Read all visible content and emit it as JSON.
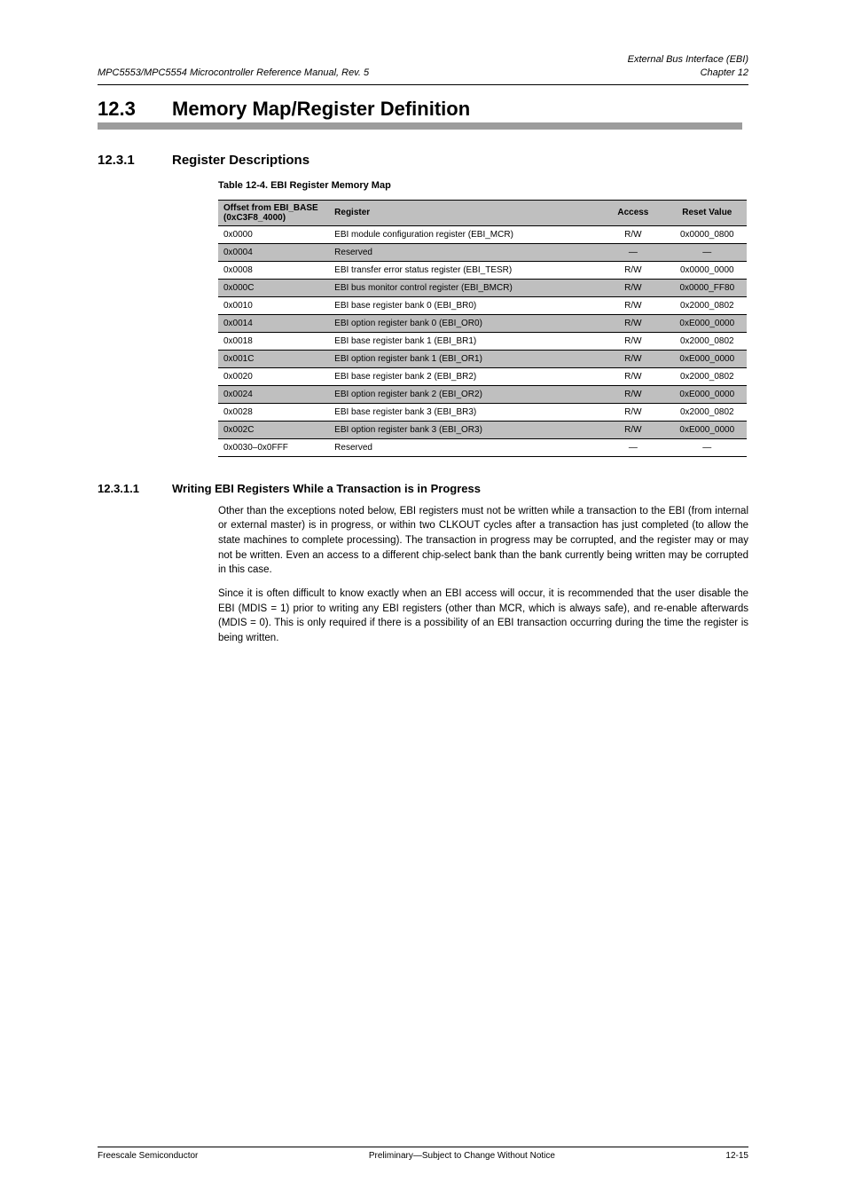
{
  "header": {
    "left_line1": "MPC5553/MPC5554 Microcontroller Reference Manual, Rev. 5",
    "right_line1": "External Bus Interface (EBI)",
    "right_line2": "Chapter 12"
  },
  "section": {
    "number": "12.3",
    "title": "Memory Map/Register Definition"
  },
  "subsection": {
    "number": "12.3.1",
    "title": "Register Descriptions"
  },
  "table": {
    "caption": "Table 12-4. EBI Register Memory Map",
    "columns": [
      "Offset from EBI_BASE (0xC3F8_4000)",
      "Register",
      "Access",
      "Reset Value"
    ],
    "col_align": [
      "left",
      "left",
      "center",
      "center"
    ],
    "row_shade_color": "#bfbfbf",
    "border_color": "#000000",
    "font_size_pt": 10,
    "rows": [
      [
        "0x0000",
        "EBI module configuration register (EBI_MCR)",
        "R/W",
        "0x0000_0800"
      ],
      [
        "0x0004",
        "Reserved",
        "—",
        "—"
      ],
      [
        "0x0008",
        "EBI transfer error status register (EBI_TESR)",
        "R/W",
        "0x0000_0000"
      ],
      [
        "0x000C",
        "EBI bus monitor control register (EBI_BMCR)",
        "R/W",
        "0x0000_FF80"
      ],
      [
        "0x0010",
        "EBI base register bank 0 (EBI_BR0)",
        "R/W",
        "0x2000_0802"
      ],
      [
        "0x0014",
        "EBI option register bank 0 (EBI_OR0)",
        "R/W",
        "0xE000_0000"
      ],
      [
        "0x0018",
        "EBI base register bank 1 (EBI_BR1)",
        "R/W",
        "0x2000_0802"
      ],
      [
        "0x001C",
        "EBI option register bank 1 (EBI_OR1)",
        "R/W",
        "0xE000_0000"
      ],
      [
        "0x0020",
        "EBI base register bank 2 (EBI_BR2)",
        "R/W",
        "0x2000_0802"
      ],
      [
        "0x0024",
        "EBI option register bank 2 (EBI_OR2)",
        "R/W",
        "0xE000_0000"
      ],
      [
        "0x0028",
        "EBI base register bank 3 (EBI_BR3)",
        "R/W",
        "0x2000_0802"
      ],
      [
        "0x002C",
        "EBI option register bank 3 (EBI_OR3)",
        "R/W",
        "0xE000_0000"
      ],
      [
        "0x0030–0x0FFF",
        "Reserved",
        "—",
        "—"
      ]
    ]
  },
  "subsubsection": {
    "number": "12.3.1.1",
    "title": "Writing EBI Registers While a Transaction is in Progress"
  },
  "paragraphs": {
    "p1": "Other than the exceptions noted below, EBI registers must not be written while a transaction to the EBI (from internal or external master) is in progress, or within two CLKOUT cycles after a transaction has just completed (to allow the state machines to complete processing). The transaction in progress may be corrupted, and the register may or may not be written. Even an access to a different chip-select bank than the bank currently being written may be corrupted in this case.",
    "p2": "Since it is often difficult to know exactly when an EBI access will occur, it is recommended that the user disable the EBI (MDIS = 1) prior to writing any EBI registers (other than MCR, which is always safe), and re-enable afterwards (MDIS = 0). This is only required if there is a possibility of an EBI transaction occurring during the time the register is being written."
  },
  "footer": {
    "left": "Freescale Semiconductor",
    "center": "Preliminary—Subject to Change Without Notice",
    "right": "12-15"
  },
  "colors": {
    "section_bar": "#9c9c9c",
    "table_shade": "#bfbfbf",
    "background": "#ffffff",
    "text": "#000000"
  }
}
